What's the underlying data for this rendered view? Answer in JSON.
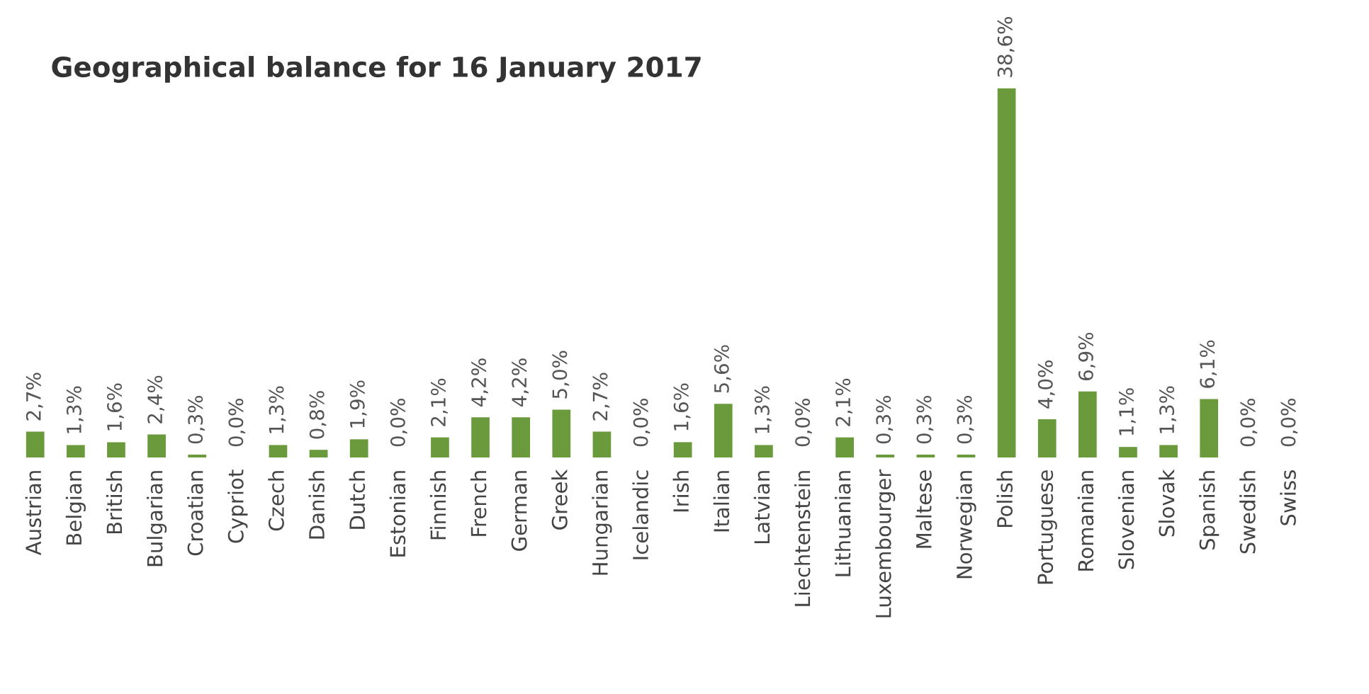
{
  "chart_data": {
    "type": "bar",
    "title": "Geographical balance for 16 January 2017",
    "categories": [
      "Austrian",
      "Belgian",
      "British",
      "Bulgarian",
      "Croatian",
      "Cypriot",
      "Czech",
      "Danish",
      "Dutch",
      "Estonian",
      "Finnish",
      "French",
      "German",
      "Greek",
      "Hungarian",
      "Icelandic",
      "Irish",
      "Italian",
      "Latvian",
      "Liechtenstein",
      "Lithuanian",
      "Luxembourger",
      "Maltese",
      "Norwegian",
      "Polish",
      "Portuguese",
      "Romanian",
      "Slovenian",
      "Slovak",
      "Spanish",
      "Swedish",
      "Swiss"
    ],
    "values": [
      2.7,
      1.3,
      1.6,
      2.4,
      0.3,
      0.0,
      1.3,
      0.8,
      1.9,
      0.0,
      2.1,
      4.2,
      4.2,
      5.0,
      2.7,
      0.0,
      1.6,
      5.6,
      1.3,
      0.0,
      2.1,
      0.3,
      0.3,
      0.3,
      38.6,
      4.0,
      6.9,
      1.1,
      1.3,
      6.1,
      0.0,
      0.0
    ],
    "value_labels": [
      "2,7%",
      "1,3%",
      "1,6%",
      "2,4%",
      "0,3%",
      "0,0%",
      "1,3%",
      "0,8%",
      "1,9%",
      "0,0%",
      "2,1%",
      "4,2%",
      "4,2%",
      "5,0%",
      "2,7%",
      "0,0%",
      "1,6%",
      "5,6%",
      "1,3%",
      "0,0%",
      "2,1%",
      "0,3%",
      "0,3%",
      "0,3%",
      "38,6%",
      "4,0%",
      "6,9%",
      "1,1%",
      "1,3%",
      "6,1%",
      "0,0%",
      "0,0%"
    ],
    "color": "#6b9a3d",
    "grid": false,
    "legend": false
  }
}
